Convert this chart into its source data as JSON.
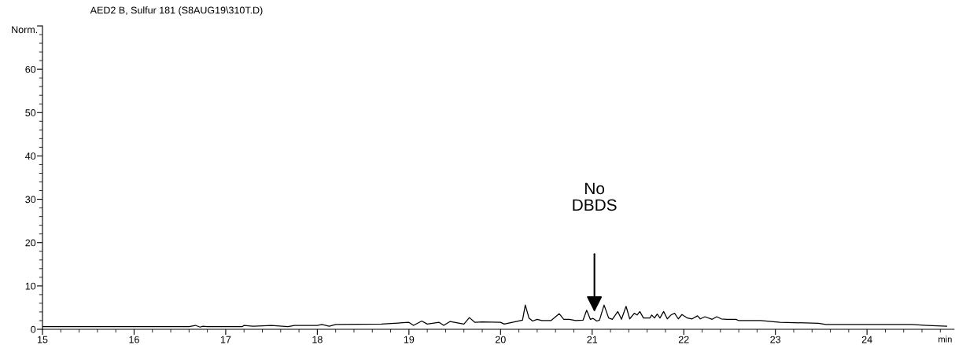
{
  "chart_data": {
    "type": "line",
    "title": "AED2 B, Sulfur 181 (S8AUG19\\310T.D)",
    "ylabel": "Norm.",
    "xlabel": "min",
    "x": [
      15.0,
      16.6,
      16.67,
      16.72,
      16.75,
      16.8,
      17.18,
      17.2,
      17.3,
      17.5,
      17.68,
      17.75,
      18.0,
      18.05,
      18.13,
      18.2,
      18.7,
      19.0,
      19.05,
      19.14,
      19.2,
      19.33,
      19.38,
      19.45,
      19.6,
      19.66,
      19.72,
      19.8,
      20.0,
      20.04,
      20.19,
      20.24,
      20.27,
      20.31,
      20.35,
      20.4,
      20.45,
      20.55,
      20.64,
      20.69,
      20.75,
      20.82,
      20.9,
      20.94,
      20.98,
      21.01,
      21.05,
      21.08,
      21.13,
      21.18,
      21.22,
      21.28,
      21.32,
      21.37,
      21.41,
      21.46,
      21.49,
      21.52,
      21.56,
      21.63,
      21.65,
      21.68,
      21.71,
      21.74,
      21.78,
      21.82,
      21.86,
      21.9,
      21.94,
      21.98,
      22.04,
      22.09,
      22.15,
      22.18,
      22.23,
      22.31,
      22.36,
      22.41,
      22.47,
      22.57,
      22.6,
      22.84,
      23.05,
      23.47,
      23.55,
      24.49,
      24.66,
      24.87
    ],
    "series": [
      {
        "color": "#000000",
        "values": [
          0.6,
          0.6,
          0.9,
          0.5,
          0.7,
          0.6,
          0.6,
          0.9,
          0.7,
          0.9,
          0.6,
          0.9,
          0.9,
          1.1,
          0.7,
          1.1,
          1.2,
          1.6,
          0.9,
          1.9,
          1.2,
          1.6,
          0.9,
          1.8,
          1.2,
          2.7,
          1.6,
          1.7,
          1.6,
          1.2,
          1.9,
          2.1,
          5.6,
          2.6,
          1.9,
          2.3,
          2.0,
          2.0,
          3.6,
          2.3,
          2.3,
          2.0,
          2.1,
          4.4,
          2.3,
          2.5,
          1.9,
          2.1,
          5.6,
          2.6,
          2.3,
          4.1,
          2.3,
          5.3,
          2.4,
          3.7,
          3.3,
          4.1,
          2.6,
          2.6,
          3.3,
          2.6,
          3.5,
          2.6,
          4.1,
          2.4,
          3.3,
          3.7,
          2.4,
          3.4,
          2.6,
          2.4,
          3.1,
          2.4,
          2.9,
          2.3,
          2.9,
          2.4,
          2.3,
          2.3,
          2.0,
          2.0,
          1.6,
          1.4,
          1.1,
          1.1,
          0.9,
          0.7
        ]
      }
    ],
    "xlim": [
      15,
      24.95
    ],
    "xticks": [
      15,
      16,
      17,
      18,
      19,
      20,
      21,
      22,
      23,
      24
    ],
    "ylim": [
      0,
      70
    ],
    "yticks": [
      0,
      10,
      20,
      30,
      40,
      50,
      60,
      {
        "value": 70,
        "label": null
      }
    ],
    "grid": false,
    "legend": false,
    "marker": "none",
    "line_style": "solid",
    "annotations": [
      "No\nDBDS"
    ]
  }
}
